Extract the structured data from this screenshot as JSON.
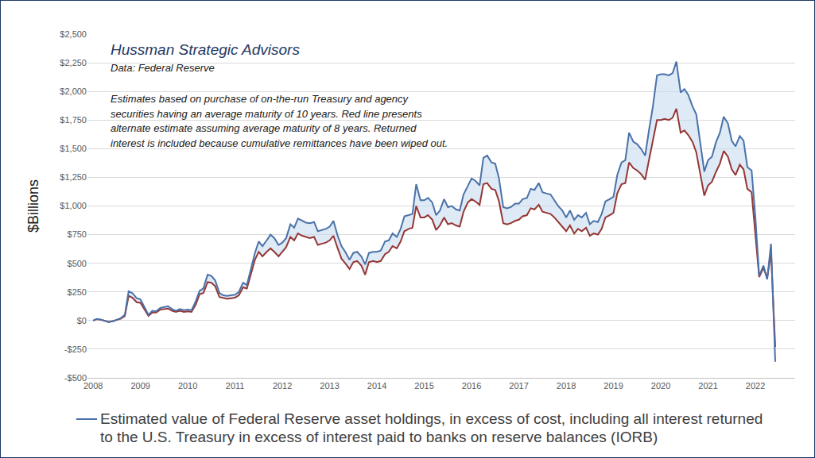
{
  "chart_data": {
    "type": "line",
    "annotations": [
      "Hussman Strategic Advisors",
      "Data: Federal Reserve",
      "Estimates based on purchase of on-the-run Treasury and agency",
      "securities having an average maturity of 10 years. Red line presents",
      "alternate estimate assuming average maturity of 8 years. Returned",
      "interest is included because cumulative remittances have been wiped out."
    ],
    "ylabel": "$Billions",
    "x": [
      2008,
      2008.08,
      2008.17,
      2008.25,
      2008.33,
      2008.42,
      2008.5,
      2008.58,
      2008.67,
      2008.75,
      2008.83,
      2008.92,
      2009,
      2009.08,
      2009.17,
      2009.25,
      2009.33,
      2009.42,
      2009.5,
      2009.58,
      2009.67,
      2009.75,
      2009.83,
      2009.92,
      2010,
      2010.08,
      2010.17,
      2010.25,
      2010.33,
      2010.42,
      2010.5,
      2010.58,
      2010.67,
      2010.75,
      2010.83,
      2010.92,
      2011,
      2011.08,
      2011.17,
      2011.25,
      2011.33,
      2011.42,
      2011.5,
      2011.58,
      2011.67,
      2011.75,
      2011.83,
      2011.92,
      2012,
      2012.08,
      2012.17,
      2012.25,
      2012.33,
      2012.42,
      2012.5,
      2012.58,
      2012.67,
      2012.75,
      2012.83,
      2012.92,
      2013,
      2013.08,
      2013.17,
      2013.25,
      2013.33,
      2013.42,
      2013.5,
      2013.58,
      2013.67,
      2013.75,
      2013.83,
      2013.92,
      2014,
      2014.08,
      2014.17,
      2014.25,
      2014.33,
      2014.42,
      2014.5,
      2014.58,
      2014.67,
      2014.75,
      2014.83,
      2014.92,
      2015,
      2015.08,
      2015.17,
      2015.25,
      2015.33,
      2015.42,
      2015.5,
      2015.58,
      2015.67,
      2015.75,
      2015.83,
      2015.92,
      2016,
      2016.08,
      2016.17,
      2016.25,
      2016.33,
      2016.42,
      2016.5,
      2016.58,
      2016.67,
      2016.75,
      2016.83,
      2016.92,
      2017,
      2017.08,
      2017.17,
      2017.25,
      2017.33,
      2017.42,
      2017.5,
      2017.58,
      2017.67,
      2017.75,
      2017.83,
      2017.92,
      2018,
      2018.08,
      2018.17,
      2018.25,
      2018.33,
      2018.42,
      2018.5,
      2018.58,
      2018.67,
      2018.75,
      2018.83,
      2018.92,
      2019,
      2019.08,
      2019.17,
      2019.25,
      2019.33,
      2019.42,
      2019.5,
      2019.58,
      2019.67,
      2019.75,
      2019.83,
      2019.92,
      2020,
      2020.08,
      2020.17,
      2020.25,
      2020.33,
      2020.42,
      2020.5,
      2020.58,
      2020.67,
      2020.75,
      2020.83,
      2020.92,
      2021,
      2021.08,
      2021.17,
      2021.25,
      2021.33,
      2021.42,
      2021.5,
      2021.58,
      2021.67,
      2021.75,
      2021.83,
      2021.92,
      2022,
      2022.08,
      2022.17,
      2022.25,
      2022.33,
      2022.42
    ],
    "series": [
      {
        "name": "Estimated value of Federal Reserve asset holdings, in excess of cost, including all interest returned to the U.S. Treasury in excess of interest paid to banks on reserve balances (IORB)",
        "color": "#4a72a8",
        "values": [
          0,
          15,
          8,
          -5,
          -15,
          -5,
          5,
          20,
          50,
          255,
          240,
          195,
          185,
          120,
          50,
          85,
          80,
          110,
          120,
          125,
          100,
          85,
          100,
          90,
          95,
          90,
          170,
          260,
          280,
          400,
          390,
          350,
          240,
          220,
          215,
          220,
          225,
          250,
          330,
          310,
          440,
          590,
          690,
          650,
          700,
          750,
          720,
          660,
          680,
          720,
          840,
          810,
          890,
          870,
          855,
          850,
          860,
          780,
          790,
          800,
          820,
          870,
          740,
          650,
          600,
          530,
          590,
          600,
          560,
          490,
          590,
          600,
          600,
          610,
          690,
          700,
          760,
          730,
          800,
          910,
          920,
          930,
          1190,
          1050,
          1050,
          1070,
          1030,
          920,
          960,
          1060,
          990,
          1000,
          970,
          960,
          1100,
          1180,
          1240,
          1220,
          1180,
          1420,
          1440,
          1380,
          1370,
          1240,
          990,
          980,
          990,
          1020,
          1020,
          1060,
          1070,
          1150,
          1140,
          1200,
          1120,
          1110,
          1100,
          1050,
          1000,
          960,
          900,
          960,
          880,
          920,
          900,
          940,
          840,
          870,
          860,
          930,
          1040,
          1060,
          1080,
          1270,
          1380,
          1400,
          1640,
          1560,
          1540,
          1500,
          1440,
          1660,
          1860,
          2140,
          2150,
          2150,
          2140,
          2160,
          2260,
          1990,
          2020,
          1970,
          1870,
          1800,
          1560,
          1300,
          1400,
          1430,
          1560,
          1640,
          1780,
          1720,
          1570,
          1520,
          1610,
          1570,
          1340,
          1310,
          900,
          390,
          480,
          360,
          670,
          -360
        ]
      },
      {
        "color": "#953735",
        "values": [
          0,
          12,
          6,
          -5,
          -12,
          -5,
          4,
          15,
          40,
          215,
          200,
          160,
          155,
          100,
          40,
          70,
          70,
          95,
          100,
          105,
          85,
          75,
          85,
          75,
          80,
          75,
          140,
          230,
          240,
          335,
          330,
          300,
          205,
          195,
          190,
          195,
          200,
          220,
          290,
          280,
          400,
          530,
          600,
          560,
          600,
          630,
          600,
          560,
          600,
          640,
          730,
          700,
          760,
          740,
          730,
          720,
          730,
          660,
          670,
          680,
          700,
          740,
          630,
          540,
          500,
          450,
          510,
          520,
          480,
          400,
          510,
          520,
          510,
          520,
          580,
          600,
          650,
          630,
          690,
          780,
          800,
          810,
          1000,
          900,
          900,
          920,
          880,
          790,
          830,
          900,
          840,
          850,
          830,
          820,
          950,
          1030,
          1060,
          1040,
          1010,
          1190,
          1200,
          1150,
          1140,
          1040,
          850,
          840,
          850,
          870,
          880,
          910,
          920,
          980,
          970,
          1010,
          950,
          940,
          930,
          900,
          860,
          820,
          780,
          830,
          760,
          800,
          780,
          810,
          740,
          760,
          750,
          800,
          900,
          920,
          940,
          1110,
          1190,
          1200,
          1380,
          1330,
          1310,
          1280,
          1230,
          1400,
          1560,
          1750,
          1750,
          1760,
          1750,
          1770,
          1850,
          1640,
          1660,
          1620,
          1560,
          1470,
          1290,
          1090,
          1180,
          1210,
          1300,
          1370,
          1480,
          1430,
          1320,
          1270,
          1360,
          1320,
          1150,
          1120,
          750,
          380,
          460,
          370,
          600,
          -230
        ]
      }
    ],
    "xlim": [
      2007.88,
      2022.84
    ],
    "xticks": [
      2008,
      2009,
      2010,
      2011,
      2012,
      2013,
      2014,
      2015,
      2016,
      2017,
      2018,
      2019,
      2020,
      2021,
      2022
    ],
    "ylim": [
      -500,
      2500
    ],
    "yticks": [
      {
        "value": -500,
        "label": "-$500"
      },
      {
        "value": -250,
        "label": "-$250"
      },
      {
        "value": 0,
        "label": "$0"
      },
      {
        "value": 250,
        "label": "$250"
      },
      {
        "value": 500,
        "label": "$500"
      },
      {
        "value": 750,
        "label": "$750"
      },
      {
        "value": 1000,
        "label": "$1,000"
      },
      {
        "value": 1250,
        "label": "$1,250"
      },
      {
        "value": 1500,
        "label": "$1,500"
      },
      {
        "value": 1750,
        "label": "$1,750"
      },
      {
        "value": 2000,
        "label": "$2,000"
      },
      {
        "value": 2250,
        "label": "$2,250"
      },
      {
        "value": 2500,
        "label": "$2,500"
      }
    ],
    "grid": true,
    "legend": "bottom"
  }
}
